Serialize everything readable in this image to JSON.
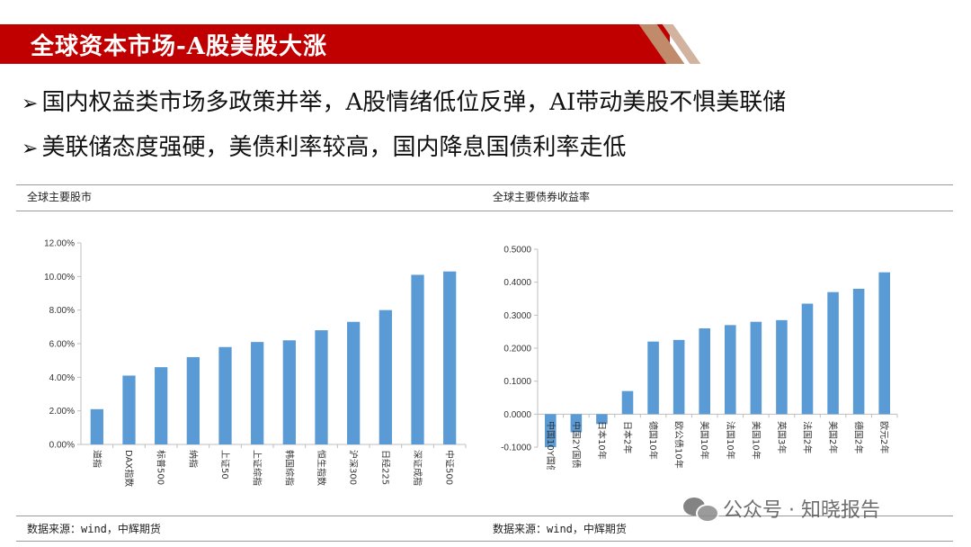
{
  "header": {
    "title": "全球资本市场-A股美股大涨"
  },
  "bullets": [
    {
      "marker": "➢",
      "text": "国内权益类市场多政策并举，A股情绪低位反弹，AI带动美股不惧美联储"
    },
    {
      "marker": "➢",
      "text": "美联储态度强硬，美债利率较高，国内降息国债利率走低"
    }
  ],
  "panels": {
    "left": {
      "title": "全球主要股市",
      "source": "数据来源：wind，中辉期货"
    },
    "right": {
      "title": "全球主要债券收益率",
      "source": "数据来源：wind，中辉期货"
    }
  },
  "watermark": {
    "text": "公众号 · 知晓报告"
  },
  "colors": {
    "banner": "#c00000",
    "bar": "#5b9bd5",
    "axis": "#bfbfbf"
  },
  "chart_data": [
    {
      "type": "bar",
      "categories": [
        "道指",
        "DAX指数",
        "标普500",
        "纳指",
        "上证50",
        "上证综指",
        "韩国综指",
        "恒生指数",
        "沪深300",
        "日经225",
        "深证成指",
        "中证500"
      ],
      "values": [
        2.1,
        4.1,
        4.6,
        5.2,
        5.8,
        6.1,
        6.2,
        6.8,
        7.3,
        8.0,
        10.1,
        10.3
      ],
      "ylim": [
        0,
        12
      ],
      "yticks": [
        "0.00%",
        "2.00%",
        "4.00%",
        "6.00%",
        "8.00%",
        "10.00%",
        "12.00%"
      ],
      "grid": false
    },
    {
      "type": "bar",
      "categories": [
        "中国10Y国债",
        "中国2Y国债",
        "日本10年",
        "日本2年",
        "德国10年",
        "欧公债10年",
        "美国10年",
        "法国10年",
        "美国10年",
        "英国3年",
        "法国2年",
        "美国2年",
        "德国2年",
        "欧元2年"
      ],
      "values": [
        -0.1,
        -0.055,
        -0.03,
        0.07,
        0.22,
        0.225,
        0.26,
        0.27,
        0.28,
        0.285,
        0.335,
        0.37,
        0.38,
        0.43
      ],
      "ylim": [
        -0.1,
        0.5
      ],
      "yticks": [
        "-0.1000",
        "0.0000",
        "0.1000",
        "0.2000",
        "0.3000",
        "0.4000",
        "0.5000"
      ],
      "grid": false
    }
  ]
}
